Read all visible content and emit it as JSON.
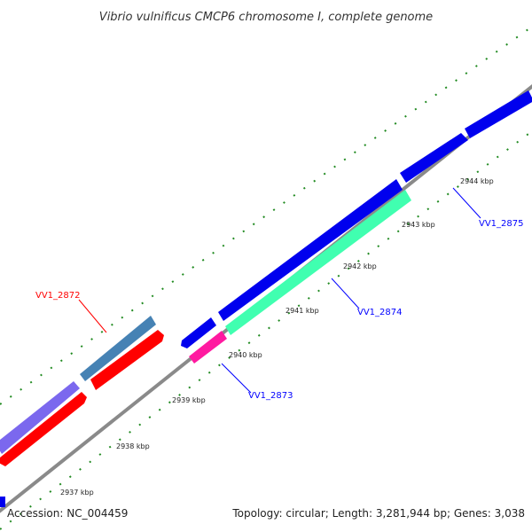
{
  "title": "Vibrio vulnificus CMCP6 chromosome I, complete genome",
  "footer": {
    "accession": "Accession: NC_004459",
    "summary": "Topology: circular; Length: 3,281,944 bp; Genes: 3,038"
  },
  "colors": {
    "background": "#ffffff",
    "backbone": "#8a8a8a",
    "ticks": "#228b22",
    "label_red": "#ff0000",
    "label_blue": "#0000ff",
    "gene_blue": "#0000ee",
    "gene_red": "#ff0000",
    "gene_steelblue": "#4682b4",
    "gene_slateblue": "#7b68ee",
    "gene_aquamarine": "#40ffb0",
    "gene_magenta": "#ff1aa0"
  },
  "ticks": [
    {
      "label": "2937 kbp"
    },
    {
      "label": "2938 kbp"
    },
    {
      "label": "2939 kbp"
    },
    {
      "label": "2940 kbp"
    },
    {
      "label": "2941 kbp"
    },
    {
      "label": "2942 kbp"
    },
    {
      "label": "2943 kbp"
    },
    {
      "label": "2944 kbp"
    }
  ],
  "gene_labels": [
    {
      "name": "VV1_2872",
      "color": "#ff0000"
    },
    {
      "name": "VV1_2873",
      "color": "#0000ff"
    },
    {
      "name": "VV1_2874",
      "color": "#0000ff"
    },
    {
      "name": "VV1_2875",
      "color": "#0000ff"
    }
  ]
}
